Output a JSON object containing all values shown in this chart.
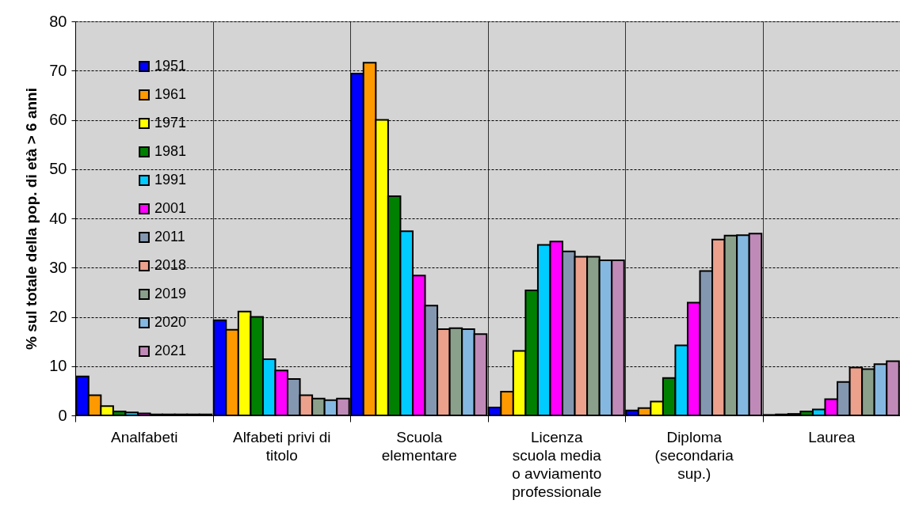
{
  "chart_data": {
    "type": "bar",
    "ylabel": "% sul totale della pop. di età > 6 anni",
    "categories": [
      "Analfabeti",
      "Alfabeti privi di\ntitolo",
      "Scuola\nelementare",
      "Licenza\nscuola media\no avviamento\nprofessionale",
      "Diploma\n(secondaria\nsup.)",
      "Laurea"
    ],
    "series": [
      {
        "name": "1951",
        "color": "#0000ff",
        "values": [
          7.9,
          19.3,
          69.4,
          1.6,
          1.0,
          0.1
        ]
      },
      {
        "name": "1961",
        "color": "#ff9900",
        "values": [
          4.1,
          17.4,
          71.6,
          4.8,
          1.5,
          0.2
        ]
      },
      {
        "name": "1971",
        "color": "#ffff00",
        "values": [
          1.9,
          21.1,
          60.0,
          13.1,
          2.8,
          0.3
        ]
      },
      {
        "name": "1981",
        "color": "#008000",
        "values": [
          0.8,
          20.0,
          44.5,
          25.4,
          7.6,
          0.8
        ]
      },
      {
        "name": "1991",
        "color": "#00ccff",
        "values": [
          0.6,
          11.4,
          37.4,
          34.6,
          14.2,
          1.2
        ]
      },
      {
        "name": "2001",
        "color": "#ff00ff",
        "values": [
          0.4,
          9.1,
          28.4,
          35.3,
          22.9,
          3.3
        ]
      },
      {
        "name": "2011",
        "color": "#8497b0",
        "values": [
          0.2,
          7.4,
          22.3,
          33.3,
          29.3,
          6.8
        ]
      },
      {
        "name": "2018",
        "color": "#eba18c",
        "values": [
          0.2,
          4.1,
          17.5,
          32.2,
          35.7,
          9.7
        ]
      },
      {
        "name": "2019",
        "color": "#8aa08a",
        "values": [
          0.2,
          3.4,
          17.7,
          32.2,
          36.5,
          9.4
        ]
      },
      {
        "name": "2020",
        "color": "#84b8e0",
        "values": [
          0.2,
          3.1,
          17.5,
          31.5,
          36.6,
          10.4
        ]
      },
      {
        "name": "2021",
        "color": "#c08ab8",
        "values": [
          0.2,
          3.4,
          16.5,
          31.5,
          36.9,
          11.0
        ]
      }
    ],
    "ylim": [
      0,
      80
    ],
    "yticks": [
      0,
      10,
      20,
      30,
      40,
      50,
      60,
      70,
      80
    ],
    "grid": true,
    "legend": "top left"
  }
}
